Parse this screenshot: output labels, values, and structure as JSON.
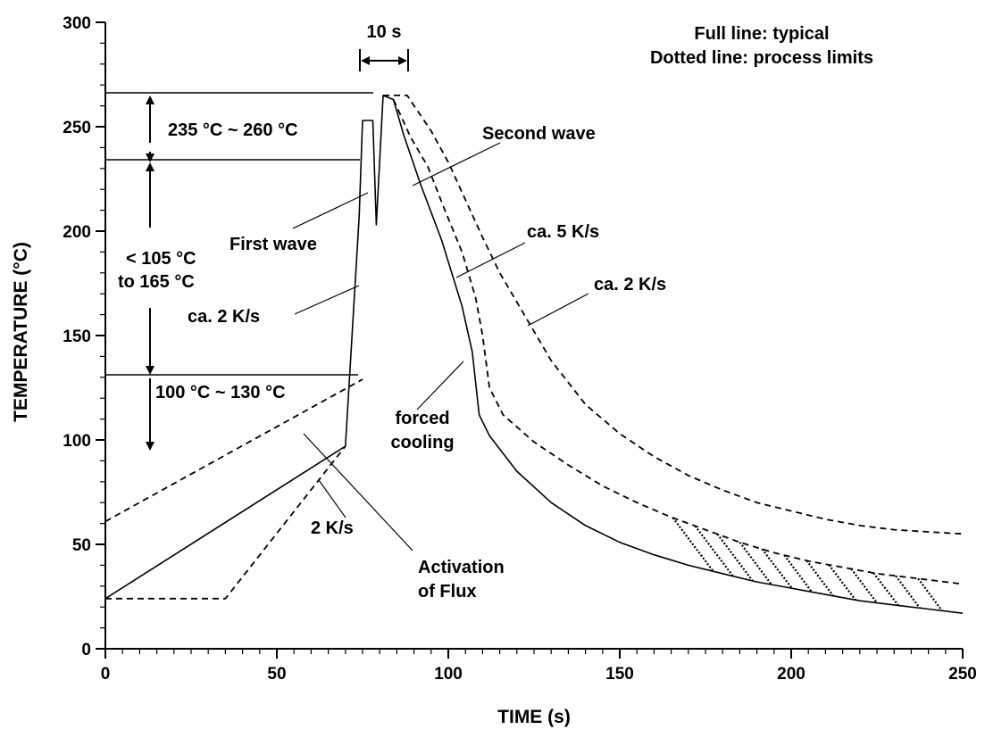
{
  "chart_data": {
    "type": "line",
    "title": "",
    "xlabel": "TIME (s)",
    "ylabel": "TEMPERATURE (°C)",
    "xlim": [
      0,
      250
    ],
    "ylim": [
      0,
      300
    ],
    "xticks": [
      "0",
      "50",
      "100",
      "150",
      "200",
      "250"
    ],
    "yticks": [
      "0",
      "50",
      "100",
      "150",
      "200",
      "250",
      "300"
    ],
    "x_minor_step": 5,
    "y_minor_step": 10,
    "grid": false,
    "legend_lines": [
      "Full line: typical",
      "Dotted line: process limits"
    ],
    "legend_placement": "top-right",
    "series": [
      {
        "style": "solid",
        "points": [
          [
            0,
            24
          ],
          [
            70,
            97
          ],
          [
            74,
            207
          ],
          [
            75,
            253
          ],
          [
            78,
            253
          ],
          [
            79,
            203
          ],
          [
            81,
            265
          ],
          [
            84,
            263
          ],
          [
            87,
            246
          ],
          [
            92,
            222
          ],
          [
            98,
            196
          ],
          [
            104,
            164
          ],
          [
            107,
            142
          ],
          [
            109,
            112
          ],
          [
            112,
            102
          ],
          [
            120,
            85
          ],
          [
            130,
            70
          ],
          [
            140,
            59
          ],
          [
            150,
            51
          ],
          [
            160,
            45
          ],
          [
            170,
            40
          ],
          [
            180,
            36
          ],
          [
            190,
            32
          ],
          [
            200,
            29
          ],
          [
            210,
            26
          ],
          [
            220,
            23
          ],
          [
            230,
            21
          ],
          [
            240,
            19
          ],
          [
            250,
            17
          ]
        ]
      },
      {
        "style": "dashed",
        "points": [
          [
            0,
            61
          ],
          [
            75,
            129
          ]
        ]
      },
      {
        "style": "dashed",
        "points": [
          [
            0,
            24
          ],
          [
            35,
            24
          ],
          [
            70,
            97
          ]
        ]
      },
      {
        "style": "dashed",
        "points": [
          [
            81,
            265
          ],
          [
            88,
            265
          ],
          [
            95,
            248
          ],
          [
            100,
            233
          ],
          [
            105,
            215
          ],
          [
            110,
            197
          ],
          [
            115,
            180
          ],
          [
            120,
            166
          ],
          [
            125,
            152
          ],
          [
            130,
            138
          ],
          [
            140,
            117
          ],
          [
            150,
            103
          ],
          [
            160,
            92
          ],
          [
            170,
            83
          ],
          [
            180,
            76
          ],
          [
            190,
            70
          ],
          [
            200,
            66
          ],
          [
            210,
            62
          ],
          [
            220,
            59
          ],
          [
            230,
            57
          ],
          [
            240,
            56
          ],
          [
            250,
            55
          ]
        ]
      },
      {
        "style": "dashed",
        "points": [
          [
            84,
            263
          ],
          [
            89,
            245
          ],
          [
            94,
            231
          ],
          [
            99,
            210
          ],
          [
            104,
            190
          ],
          [
            108,
            168
          ],
          [
            110,
            150
          ],
          [
            112,
            125
          ],
          [
            116,
            112
          ],
          [
            125,
            99
          ],
          [
            135,
            88
          ],
          [
            145,
            78
          ],
          [
            155,
            70
          ],
          [
            165,
            63
          ],
          [
            175,
            57
          ],
          [
            185,
            51
          ],
          [
            195,
            46
          ],
          [
            205,
            42
          ],
          [
            215,
            39
          ],
          [
            225,
            36
          ],
          [
            235,
            34
          ],
          [
            245,
            32
          ],
          [
            250,
            31
          ]
        ]
      }
    ],
    "annotations": [
      "10 s",
      "235 °C ~ 260 °C",
      "< 105 °C",
      "to 165 °C",
      "100 °C ~ 130 °C",
      "First wave",
      "Second wave",
      "ca. 5 K/s",
      "ca. 2 K/s",
      "ca. 2 K/s",
      "forced",
      "cooling",
      "2 K/s",
      "Activation",
      "of Flux"
    ]
  }
}
